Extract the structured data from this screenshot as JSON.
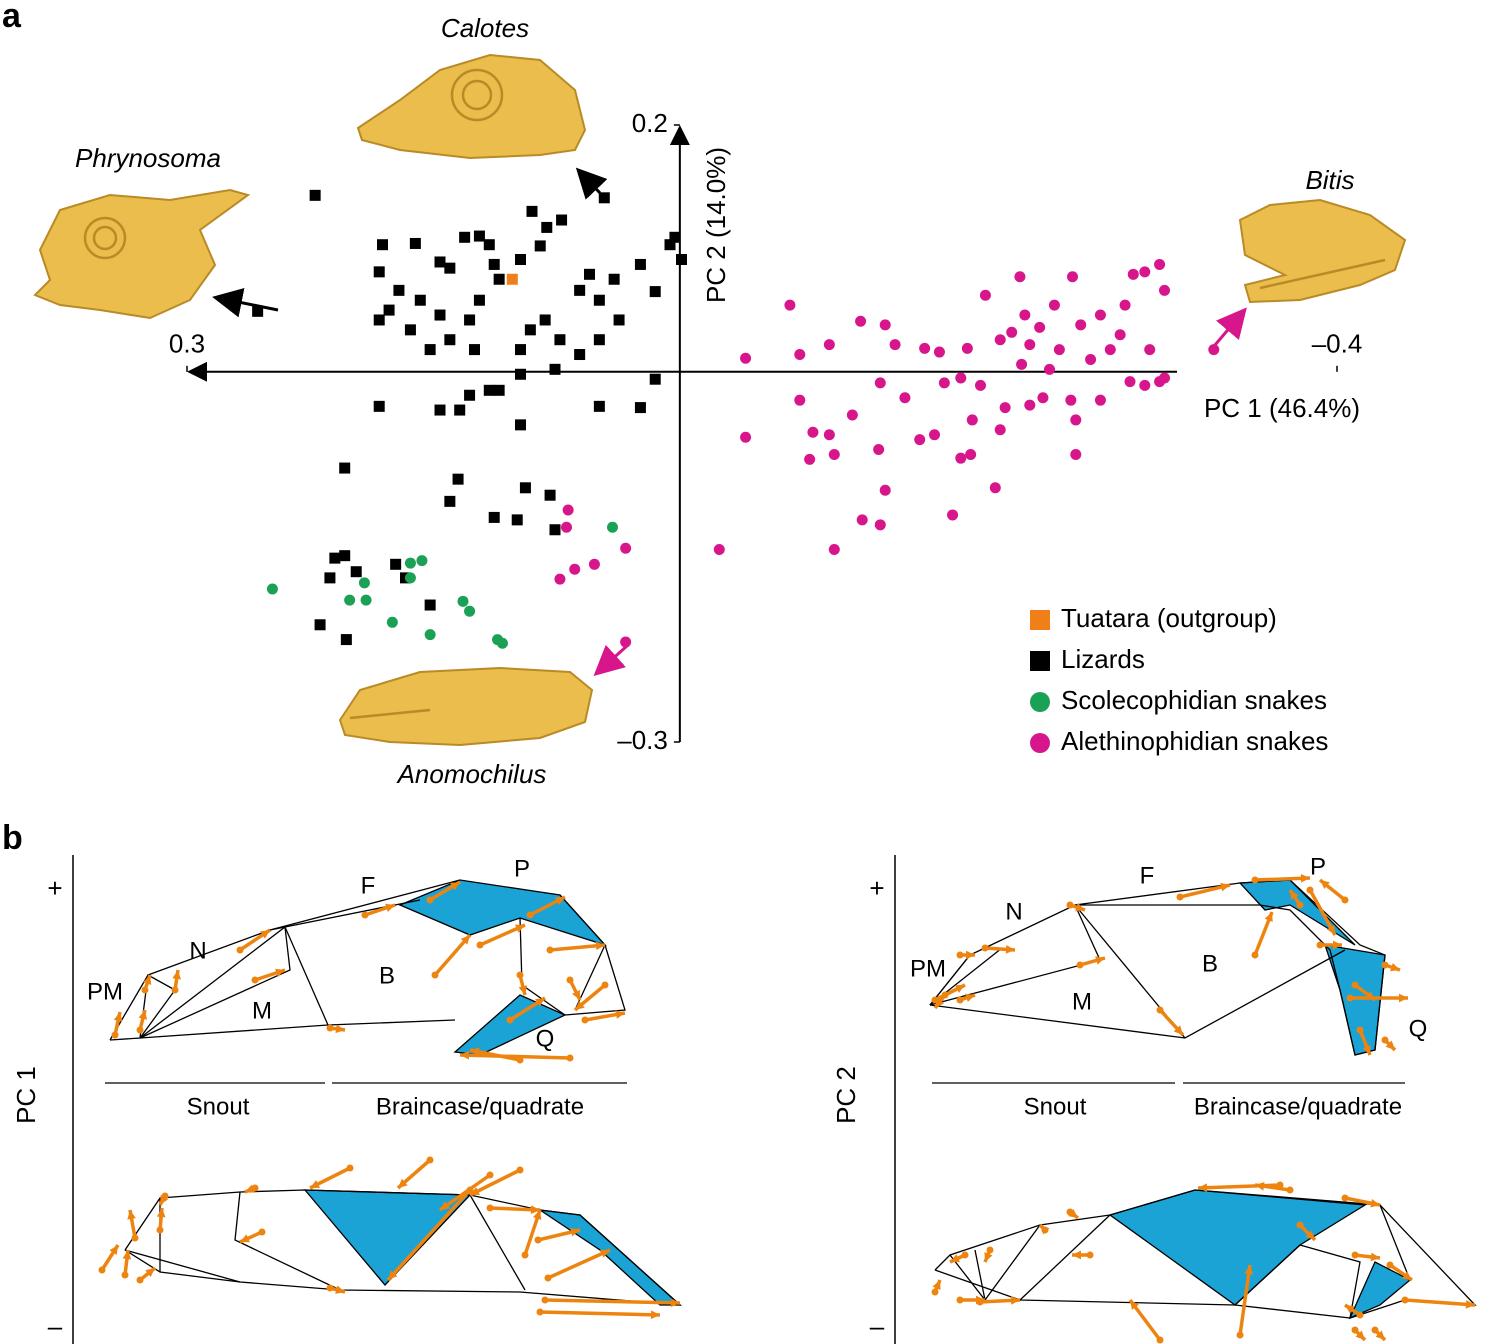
{
  "chart_data": {
    "type": "scatter",
    "xlabel": "PC 1 (46.4%)",
    "ylabel": "PC 2 (14.0%)",
    "xlim": [
      0.3,
      -0.4
    ],
    "ylim": [
      -0.3,
      0.2
    ],
    "xticks": [
      0.3,
      {
        "value": -0.4,
        "label": "–0.4"
      }
    ],
    "yticks": [
      0.2,
      {
        "value": -0.3,
        "label": "–0.3"
      }
    ],
    "legend": "lower right",
    "annotations": [
      "Phrynosoma",
      "Calotes",
      "Bitis",
      "Anomochilus"
    ],
    "series": [
      {
        "name": "Tuatara (outgroup)",
        "color": "#f07f1a",
        "marker": "square",
        "x": [
          0.102
        ],
        "values": [
          0.075
        ]
      },
      {
        "name": "Lizards",
        "color": "#000000",
        "marker": "square",
        "x": [
          0.222,
          0.257,
          0.046,
          0.003,
          -0.001,
          0.006,
          0.09,
          0.072,
          0.081,
          0.085,
          0.161,
          0.181,
          0.183,
          0.146,
          0.14,
          0.131,
          0.122,
          0.116,
          0.113,
          0.097,
          0.11,
          0.122,
          0.128,
          0.146,
          0.158,
          0.171,
          0.177,
          0.183,
          0.164,
          0.152,
          0.14,
          0.125,
          0.097,
          0.091,
          0.082,
          0.073,
          0.061,
          0.055,
          0.049,
          0.04,
          0.024,
          0.015,
          0.037,
          0.049,
          0.061,
          0.076,
          0.097,
          0.116,
          0.128,
          0.146,
          0.134,
          0.11,
          0.183,
          0.049,
          0.024,
          0.015,
          0.097,
          0.204,
          0.135,
          0.14,
          0.094,
          0.079,
          0.113,
          0.099,
          0.076,
          0.21,
          0.204,
          0.197,
          0.213,
          0.152,
          0.219,
          0.203,
          0.173,
          0.167
        ],
        "values": [
          0.143,
          0.049,
          0.141,
          0.109,
          0.091,
          0.103,
          0.13,
          0.123,
          0.117,
          0.102,
          0.104,
          0.103,
          0.081,
          0.089,
          0.084,
          0.109,
          0.11,
          0.103,
          0.087,
          0.091,
          0.075,
          0.058,
          0.042,
          0.046,
          0.058,
          0.066,
          0.05,
          0.042,
          0.034,
          0.018,
          0.026,
          0.018,
          0.018,
          0.034,
          0.042,
          0.026,
          0.066,
          0.079,
          0.058,
          0.075,
          0.087,
          0.065,
          0.042,
          0.026,
          0.014,
          0.002,
          -0.002,
          -0.015,
          -0.019,
          -0.031,
          -0.031,
          -0.015,
          -0.028,
          -0.028,
          -0.029,
          -0.006,
          -0.043,
          -0.078,
          -0.087,
          -0.105,
          -0.094,
          -0.1,
          -0.118,
          -0.12,
          -0.128,
          -0.151,
          -0.149,
          -0.162,
          -0.167,
          -0.189,
          -0.205,
          -0.217,
          -0.156,
          -0.167
        ]
      },
      {
        "name": "Scolecophidian snakes",
        "color": "#1aa156",
        "marker": "circle",
        "x": [
          0.248,
          0.164,
          0.157,
          0.164,
          0.192,
          0.201,
          0.191,
          0.175,
          0.152,
          0.132,
          0.128,
          0.111,
          0.108,
          0.041
        ],
        "values": [
          -0.176,
          -0.155,
          -0.153,
          -0.167,
          -0.171,
          -0.185,
          -0.185,
          -0.203,
          -0.213,
          -0.186,
          -0.194,
          -0.217,
          -0.22,
          -0.126
        ]
      },
      {
        "name": "Alethinophidian snakes",
        "color": "#d6168a",
        "marker": "circle",
        "x": [
          -0.292,
          -0.283,
          -0.276,
          -0.207,
          -0.239,
          -0.186,
          -0.228,
          -0.271,
          -0.067,
          -0.21,
          -0.256,
          -0.219,
          -0.244,
          -0.202,
          -0.11,
          -0.125,
          -0.268,
          -0.295,
          -0.195,
          -0.213,
          -0.231,
          -0.262,
          -0.286,
          -0.325,
          -0.131,
          -0.149,
          -0.158,
          -0.175,
          -0.091,
          -0.073,
          -0.04,
          -0.208,
          -0.225,
          -0.25,
          -0.274,
          -0.292,
          -0.295,
          -0.137,
          -0.122,
          -0.161,
          -0.171,
          -0.183,
          -0.198,
          -0.213,
          -0.221,
          -0.238,
          -0.241,
          -0.073,
          -0.081,
          -0.105,
          -0.091,
          -0.094,
          -0.04,
          -0.079,
          -0.121,
          -0.146,
          -0.155,
          -0.178,
          -0.195,
          -0.171,
          -0.177,
          -0.125,
          -0.192,
          -0.166,
          -0.111,
          -0.122,
          -0.094,
          -0.024,
          -0.241,
          -0.256,
          -0.283,
          0.068,
          0.069,
          0.064,
          0.052,
          0.033,
          0.073,
          0.033
        ],
        "values": [
          0.087,
          0.081,
          0.079,
          0.077,
          0.077,
          0.062,
          0.054,
          0.054,
          0.054,
          0.046,
          0.046,
          0.036,
          0.038,
          0.032,
          0.041,
          0.038,
          0.03,
          0.066,
          0.026,
          0.022,
          0.018,
          0.018,
          0.018,
          0.018,
          0.022,
          0.019,
          0.016,
          0.019,
          0.022,
          0.014,
          0.011,
          0.006,
          0.002,
          0.01,
          -0.008,
          -0.008,
          -0.005,
          -0.021,
          -0.009,
          -0.009,
          -0.005,
          -0.011,
          -0.029,
          -0.027,
          -0.021,
          -0.023,
          -0.039,
          -0.023,
          -0.049,
          -0.035,
          -0.051,
          -0.067,
          -0.053,
          -0.071,
          -0.063,
          -0.055,
          -0.051,
          -0.039,
          -0.047,
          -0.07,
          -0.067,
          -0.096,
          -0.094,
          -0.116,
          -0.12,
          -0.124,
          -0.144,
          -0.144,
          -0.067,
          -0.023,
          -0.011,
          -0.112,
          -0.126,
          -0.16,
          -0.156,
          -0.143,
          -0.168,
          -0.219
        ]
      }
    ]
  },
  "panel_labels": [
    "a",
    "b"
  ],
  "panel_b": {
    "diagrams": [
      {
        "axis_label": "PC 1",
        "plus": "+",
        "minus": "–",
        "landmarks": [
          "PM",
          "N",
          "M",
          "F",
          "B",
          "P",
          "Q"
        ],
        "regions": [
          "Snout",
          "Braincase/quadrate"
        ]
      },
      {
        "axis_label": "PC 2",
        "plus": "+",
        "minus": "–",
        "landmarks": [
          "PM",
          "N",
          "M",
          "F",
          "B",
          "P",
          "Q"
        ],
        "regions": [
          "Snout",
          "Braincase/quadrate"
        ]
      }
    ]
  }
}
